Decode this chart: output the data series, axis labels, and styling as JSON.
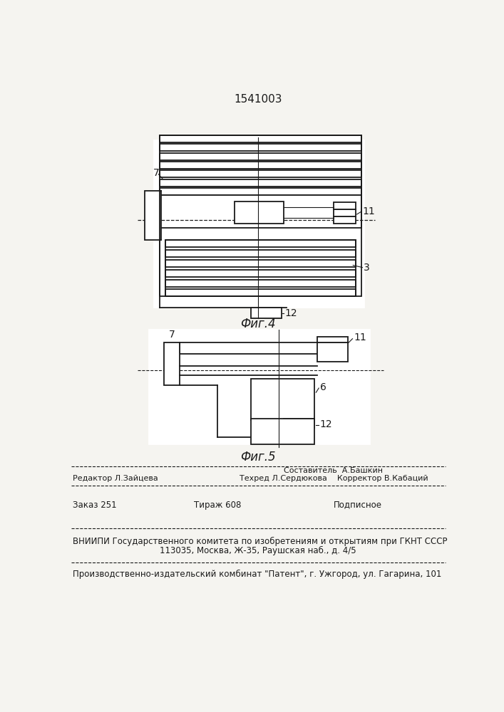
{
  "title": "1541003",
  "fig4_label": "Фиг.4",
  "fig5_label": "Фиг.5",
  "bg_color": "#f5f4f0",
  "line_color": "#1a1a1a",
  "white": "#ffffff"
}
